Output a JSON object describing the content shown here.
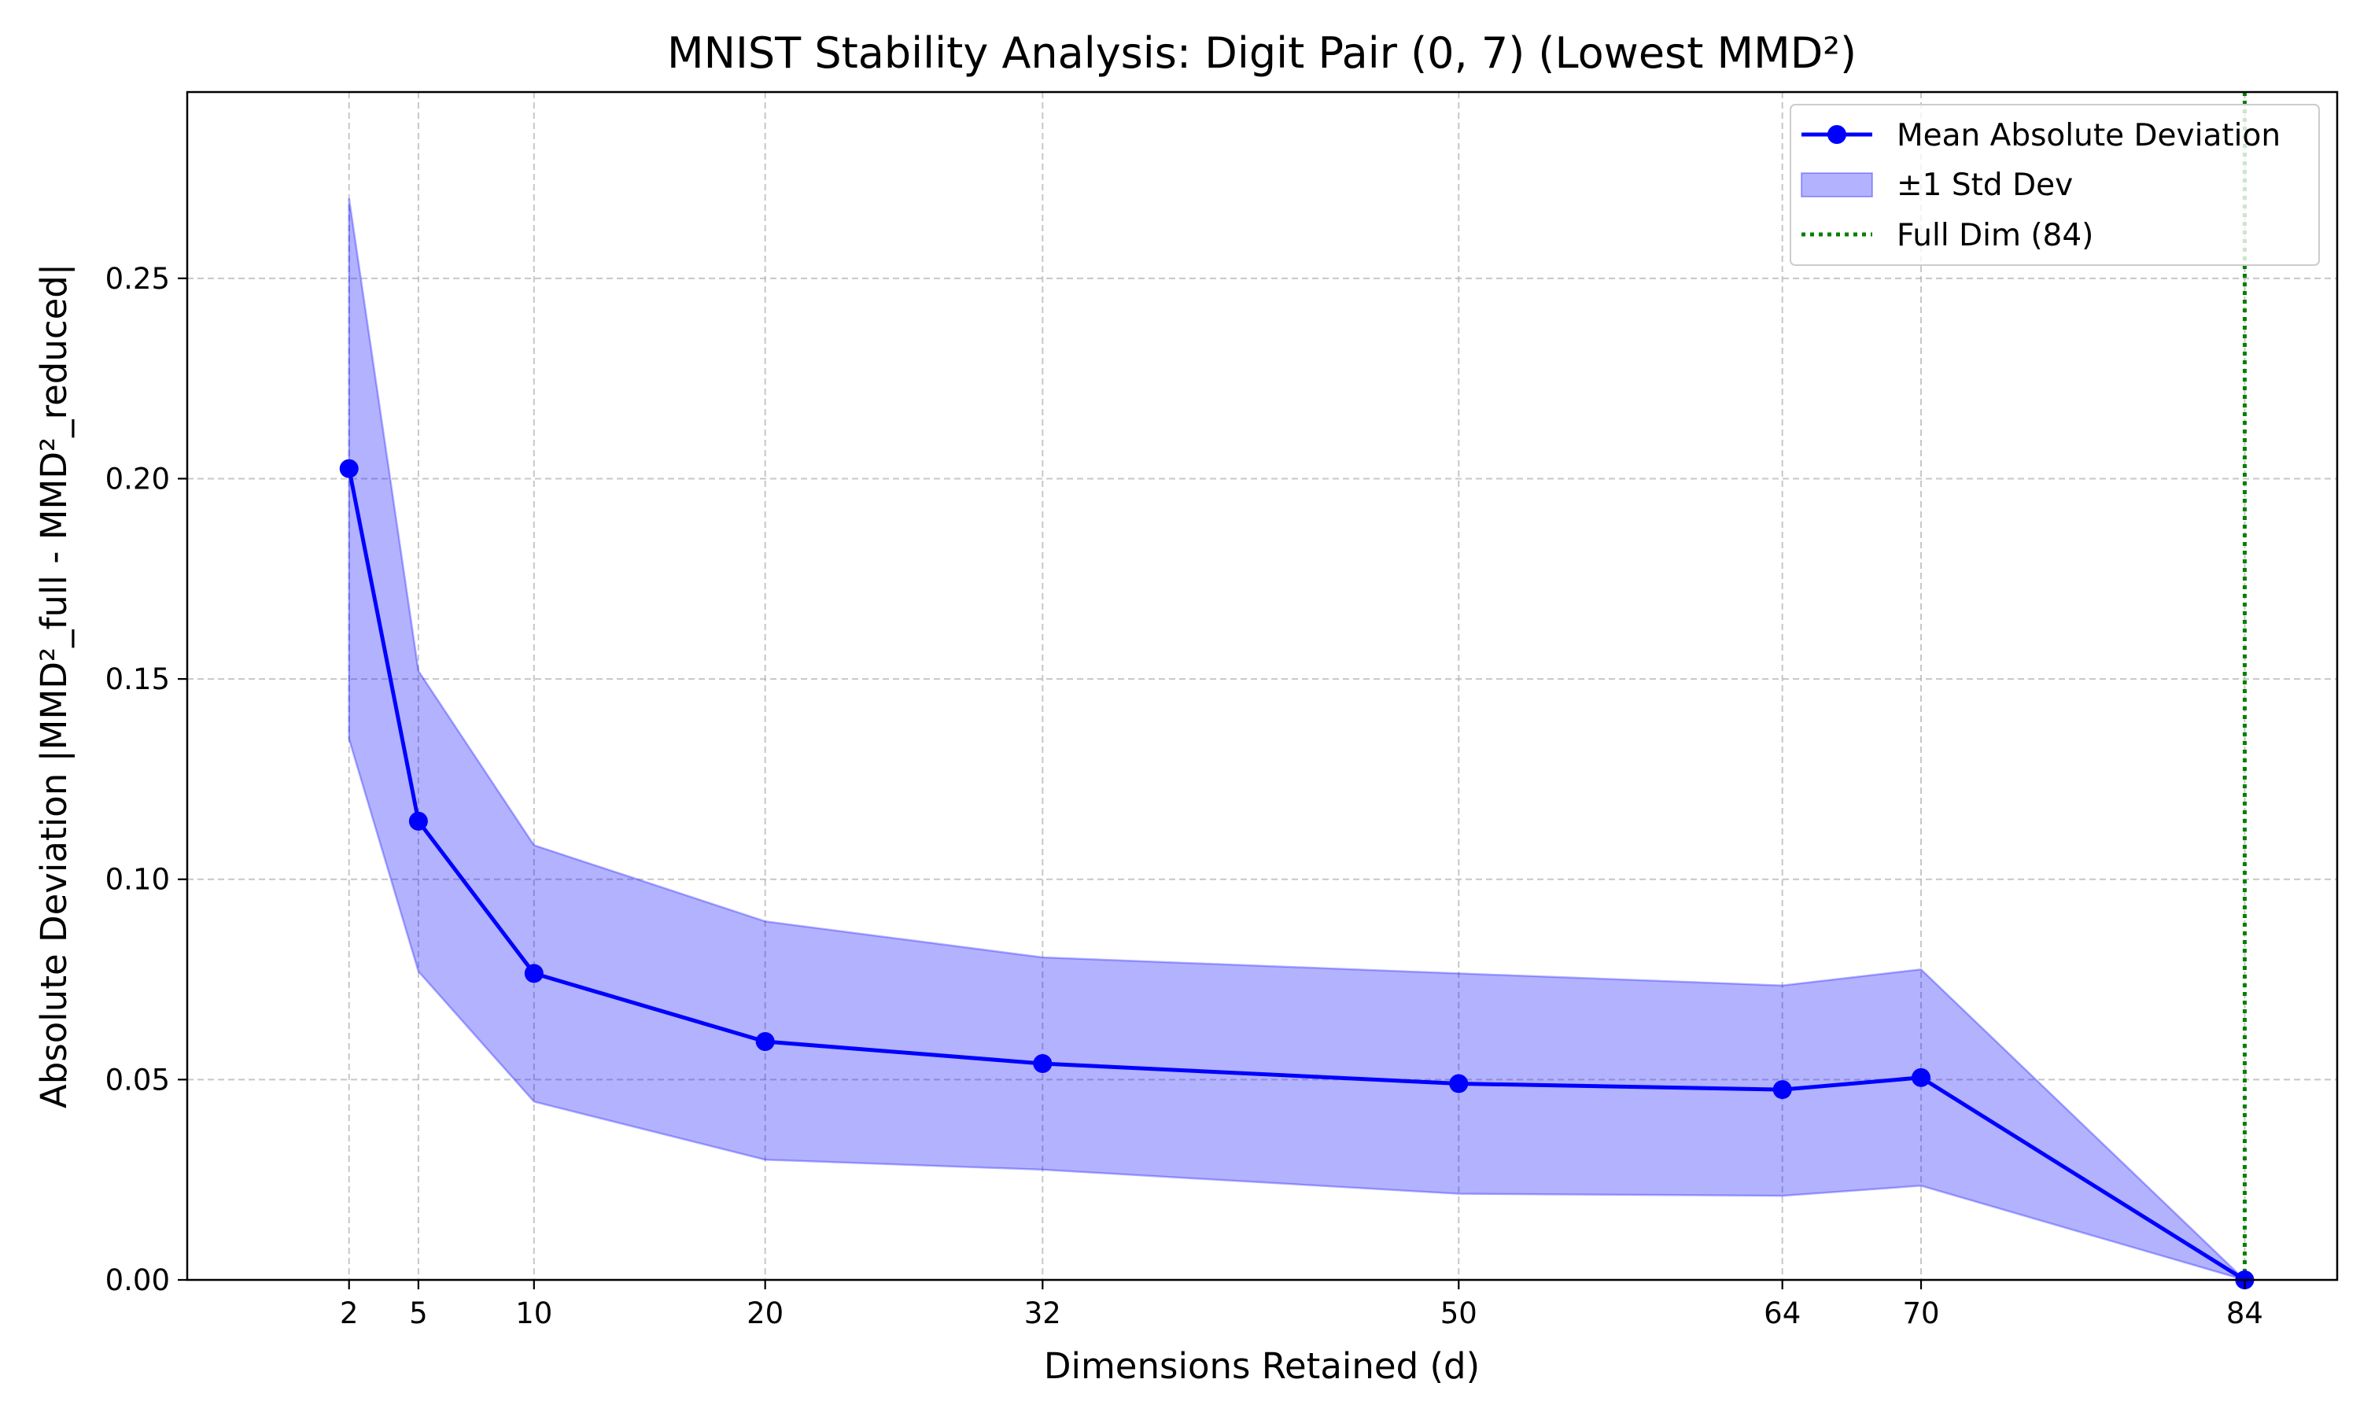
{
  "chart_data": {
    "type": "line",
    "title": "MNIST Stability Analysis: Digit Pair (0, 7) (Lowest MMD²)",
    "xlabel": "Dimensions Retained (d)",
    "ylabel": "Absolute Deviation |MMD²_full - MMD²_reduced|",
    "xlim": [
      -5,
      88
    ],
    "ylim": [
      0,
      0.2965
    ],
    "x": [
      2,
      5,
      10,
      20,
      32,
      50,
      64,
      70,
      84
    ],
    "x_ticks": [
      2,
      5,
      10,
      20,
      32,
      50,
      64,
      70,
      84
    ],
    "x_tick_labels": [
      "2",
      "5",
      "10",
      "20",
      "32",
      "50",
      "64",
      "70",
      "84"
    ],
    "y_ticks": [
      0,
      0.05,
      0.1,
      0.15,
      0.2,
      0.25
    ],
    "y_tick_labels": [
      "0.00",
      "0.05",
      "0.10",
      "0.15",
      "0.20",
      "0.25"
    ],
    "grid": true,
    "series": [
      {
        "name": "Mean Absolute Deviation",
        "kind": "line-marker",
        "color": "#0000ff",
        "values": [
          0.2025,
          0.1145,
          0.0765,
          0.0595,
          0.054,
          0.049,
          0.0475,
          0.0505,
          0.0
        ]
      },
      {
        "name": "±1 Std Dev",
        "kind": "band",
        "color": "#0000ff",
        "upper": [
          0.27,
          0.152,
          0.1085,
          0.0895,
          0.0805,
          0.0765,
          0.0735,
          0.0775,
          0.0
        ],
        "lower": [
          0.135,
          0.077,
          0.0445,
          0.03,
          0.0275,
          0.0215,
          0.021,
          0.0235,
          0.0
        ]
      },
      {
        "name": "Full Dim (84)",
        "kind": "vline",
        "color": "#008000",
        "x": 84
      }
    ],
    "legend": {
      "placement": "top-right",
      "entries": [
        "Mean Absolute Deviation",
        "±1 Std Dev",
        "Full Dim (84)"
      ]
    }
  }
}
